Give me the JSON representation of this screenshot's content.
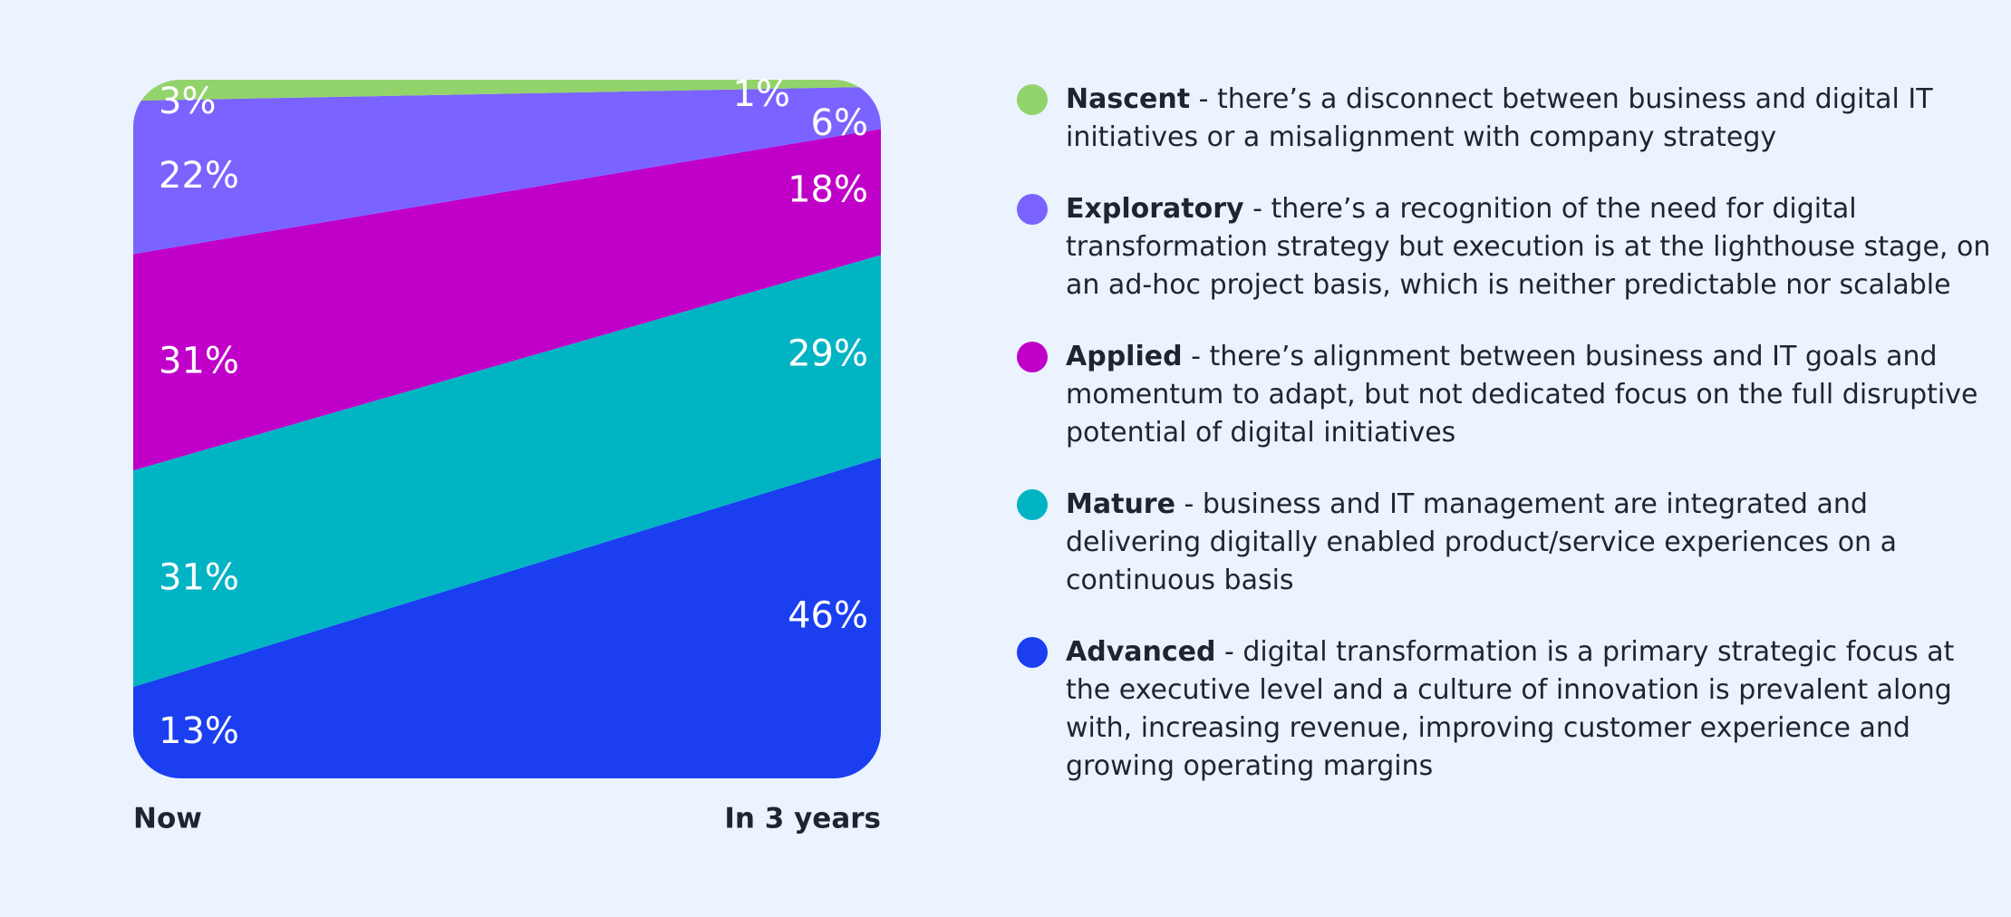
{
  "chart_data": {
    "type": "stacked-area",
    "categories": [
      "Now",
      "In 3 years"
    ],
    "ylim": [
      0,
      100
    ],
    "series": [
      {
        "name": "Advanced",
        "color": "#1a3ef0",
        "values": [
          13,
          46
        ],
        "value_labels": [
          "13%",
          "46%"
        ],
        "description": "- digital transformation is a primary strategic focus at the executive level and a culture of innovation is prevalent along with, increasing revenue, improving customer experience and growing operating margins"
      },
      {
        "name": "Mature",
        "color": "#00b4c4",
        "values": [
          31,
          29
        ],
        "value_labels": [
          "31%",
          "29%"
        ],
        "description": "- business and IT management are integrated and delivering digitally enabled product/service experiences on a continuous basis"
      },
      {
        "name": "Applied",
        "color": "#c000c8",
        "values": [
          31,
          18
        ],
        "value_labels": [
          "31%",
          "18%"
        ],
        "description": "- there’s alignment between business and IT goals and momentum to adapt, but not dedicated focus on the full disruptive potential of digital initiatives"
      },
      {
        "name": "Exploratory",
        "color": "#7a63ff",
        "values": [
          22,
          6
        ],
        "value_labels": [
          "22%",
          "6%"
        ],
        "description": "- there’s a recognition of the need for digital transformation strategy but execution is at the lighthouse stage, on an ad-hoc project basis, which is neither predictable nor scalable"
      },
      {
        "name": "Nascent",
        "color": "#93d36b",
        "values": [
          3,
          1
        ],
        "value_labels": [
          "3%",
          "1%"
        ],
        "description": "- there’s a disconnect between business and digital IT initiatives or a misalignment with company strategy"
      }
    ]
  }
}
